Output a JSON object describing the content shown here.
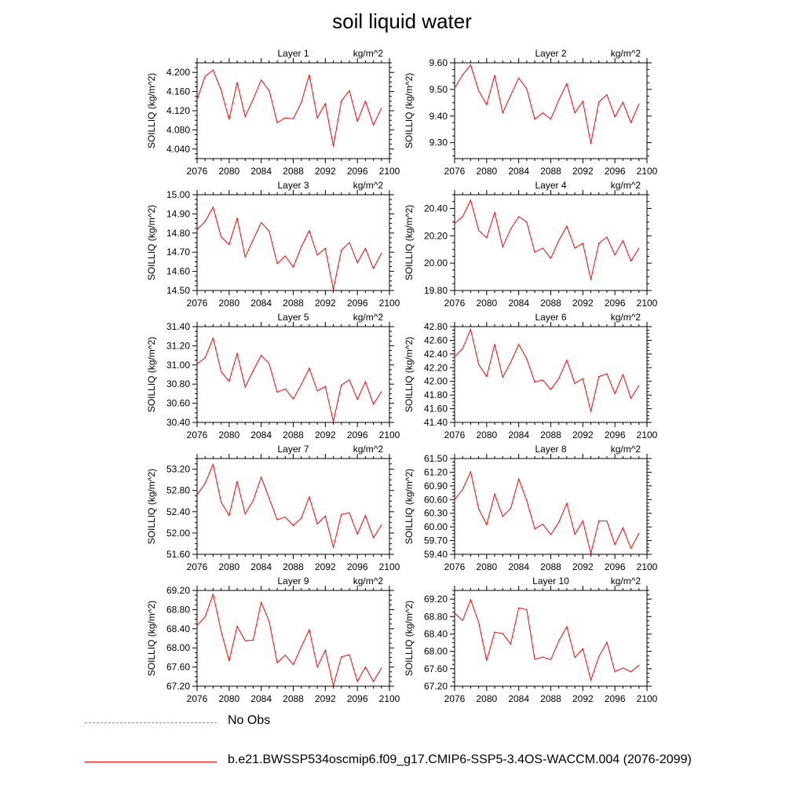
{
  "title": "soil liquid water",
  "legend": {
    "obs_label": "No Obs",
    "model_label": "b.e21.BWSSP534oscmip6.f09_g17.CMIP6-SSP5-3.4OS-WACCM.004 (2076-2099)"
  },
  "colors": {
    "model": "#ff0000",
    "obs": "#8a8aff"
  },
  "chart_data": [
    {
      "type": "line",
      "title": "Layer 1",
      "units": "kg/m^2",
      "ylabel": "SOILLIQ  (kg/m^2)",
      "xlim": [
        2076,
        2100
      ],
      "xticks": [
        2076,
        2080,
        2084,
        2088,
        2092,
        2096,
        2100
      ],
      "ylim": [
        4.02,
        4.22
      ],
      "yticks": [
        "4.040",
        "4.080",
        "4.120",
        "4.160",
        "4.200"
      ],
      "x": [
        2076,
        2077,
        2078,
        2079,
        2080,
        2081,
        2082,
        2083,
        2084,
        2085,
        2086,
        2087,
        2088,
        2089,
        2090,
        2091,
        2092,
        2093,
        2094,
        2095,
        2096,
        2097,
        2098,
        2099
      ],
      "values": [
        4.143,
        4.192,
        4.205,
        4.163,
        4.102,
        4.179,
        4.108,
        4.144,
        4.184,
        4.162,
        4.095,
        4.105,
        4.103,
        4.137,
        4.195,
        4.105,
        4.135,
        4.046,
        4.14,
        4.162,
        4.098,
        4.14,
        4.09,
        4.125
      ]
    },
    {
      "type": "line",
      "title": "Layer 2",
      "units": "kg/m^2",
      "ylabel": "SOILLIQ  (kg/m^2)",
      "xlim": [
        2076,
        2100
      ],
      "xticks": [
        2076,
        2080,
        2084,
        2088,
        2092,
        2096,
        2100
      ],
      "ylim": [
        9.24,
        9.6
      ],
      "yticks": [
        "9.30",
        "9.40",
        "9.50",
        "9.60"
      ],
      "x": [
        2076,
        2077,
        2078,
        2079,
        2080,
        2081,
        2082,
        2083,
        2084,
        2085,
        2086,
        2087,
        2088,
        2089,
        2090,
        2091,
        2092,
        2093,
        2094,
        2095,
        2096,
        2097,
        2098,
        2099
      ],
      "values": [
        9.505,
        9.555,
        9.592,
        9.495,
        9.443,
        9.553,
        9.412,
        9.478,
        9.543,
        9.502,
        9.388,
        9.412,
        9.388,
        9.46,
        9.522,
        9.412,
        9.455,
        9.297,
        9.453,
        9.48,
        9.397,
        9.452,
        9.375,
        9.445
      ]
    },
    {
      "type": "line",
      "title": "Layer 3",
      "units": "kg/m^2",
      "ylabel": "SOILLIQ  (kg/m^2)",
      "xlim": [
        2076,
        2100
      ],
      "xticks": [
        2076,
        2080,
        2084,
        2088,
        2092,
        2096,
        2100
      ],
      "ylim": [
        14.5,
        15.0
      ],
      "yticks": [
        "14.50",
        "14.60",
        "14.70",
        "14.80",
        "14.90",
        "15.00"
      ],
      "x": [
        2076,
        2077,
        2078,
        2079,
        2080,
        2081,
        2082,
        2083,
        2084,
        2085,
        2086,
        2087,
        2088,
        2089,
        2090,
        2091,
        2092,
        2093,
        2094,
        2095,
        2096,
        2097,
        2098,
        2099
      ],
      "values": [
        14.818,
        14.86,
        14.935,
        14.78,
        14.74,
        14.878,
        14.675,
        14.765,
        14.855,
        14.81,
        14.64,
        14.68,
        14.622,
        14.728,
        14.812,
        14.685,
        14.72,
        14.505,
        14.71,
        14.75,
        14.645,
        14.72,
        14.615,
        14.695
      ]
    },
    {
      "type": "line",
      "title": "Layer 4",
      "units": "kg/m^2",
      "ylabel": "SOILLIQ  (kg/m^2)",
      "xlim": [
        2076,
        2100
      ],
      "xticks": [
        2076,
        2080,
        2084,
        2088,
        2092,
        2096,
        2100
      ],
      "ylim": [
        19.8,
        20.5
      ],
      "yticks": [
        "19.80",
        "20.00",
        "20.20",
        "20.40"
      ],
      "x": [
        2076,
        2077,
        2078,
        2079,
        2080,
        2081,
        2082,
        2083,
        2084,
        2085,
        2086,
        2087,
        2088,
        2089,
        2090,
        2091,
        2092,
        2093,
        2094,
        2095,
        2096,
        2097,
        2098,
        2099
      ],
      "values": [
        20.29,
        20.34,
        20.46,
        20.24,
        20.185,
        20.37,
        20.12,
        20.25,
        20.34,
        20.3,
        20.08,
        20.11,
        20.035,
        20.165,
        20.27,
        20.11,
        20.145,
        19.88,
        20.145,
        20.19,
        20.06,
        20.165,
        20.015,
        20.11
      ]
    },
    {
      "type": "line",
      "title": "Layer 5",
      "units": "kg/m^2",
      "ylabel": "SOILLIQ  (kg/m^2)",
      "xlim": [
        2076,
        2100
      ],
      "xticks": [
        2076,
        2080,
        2084,
        2088,
        2092,
        2096,
        2100
      ],
      "ylim": [
        30.4,
        31.4
      ],
      "yticks": [
        "30.40",
        "30.60",
        "30.80",
        "31.00",
        "31.20",
        "31.40"
      ],
      "x": [
        2076,
        2077,
        2078,
        2079,
        2080,
        2081,
        2082,
        2083,
        2084,
        2085,
        2086,
        2087,
        2088,
        2089,
        2090,
        2091,
        2092,
        2093,
        2094,
        2095,
        2096,
        2097,
        2098,
        2099
      ],
      "values": [
        31.01,
        31.075,
        31.28,
        30.93,
        30.83,
        31.12,
        30.77,
        30.94,
        31.1,
        31.01,
        30.715,
        30.75,
        30.645,
        30.795,
        30.965,
        30.73,
        30.775,
        30.41,
        30.79,
        30.845,
        30.64,
        30.825,
        30.59,
        30.72
      ]
    },
    {
      "type": "line",
      "title": "Layer 6",
      "units": "kg/m^2",
      "ylabel": "SOILLIQ  (kg/m^2)",
      "xlim": [
        2076,
        2100
      ],
      "xticks": [
        2076,
        2080,
        2084,
        2088,
        2092,
        2096,
        2100
      ],
      "ylim": [
        41.4,
        42.8
      ],
      "yticks": [
        "41.40",
        "41.60",
        "41.80",
        "42.00",
        "42.20",
        "42.40",
        "42.60",
        "42.80"
      ],
      "x": [
        2076,
        2077,
        2078,
        2079,
        2080,
        2081,
        2082,
        2083,
        2084,
        2085,
        2086,
        2087,
        2088,
        2089,
        2090,
        2091,
        2092,
        2093,
        2094,
        2095,
        2096,
        2097,
        2098,
        2099
      ],
      "values": [
        42.36,
        42.48,
        42.76,
        42.25,
        42.07,
        42.54,
        42.06,
        42.28,
        42.54,
        42.33,
        41.99,
        42.02,
        41.88,
        42.04,
        42.31,
        41.97,
        42.04,
        41.56,
        42.07,
        42.11,
        41.82,
        42.1,
        41.75,
        41.94
      ]
    },
    {
      "type": "line",
      "title": "Layer 7",
      "units": "kg/m^2",
      "ylabel": "SOILLIQ  (kg/m^2)",
      "xlim": [
        2076,
        2100
      ],
      "xticks": [
        2076,
        2080,
        2084,
        2088,
        2092,
        2096,
        2100
      ],
      "ylim": [
        51.6,
        53.4
      ],
      "yticks": [
        "51.60",
        "52.00",
        "52.40",
        "52.80",
        "53.20"
      ],
      "x": [
        2076,
        2077,
        2078,
        2079,
        2080,
        2081,
        2082,
        2083,
        2084,
        2085,
        2086,
        2087,
        2088,
        2089,
        2090,
        2091,
        2092,
        2093,
        2094,
        2095,
        2096,
        2097,
        2098,
        2099
      ],
      "values": [
        52.72,
        52.93,
        53.29,
        52.58,
        52.33,
        52.97,
        52.36,
        52.61,
        53.05,
        52.65,
        52.25,
        52.3,
        52.14,
        52.28,
        52.68,
        52.17,
        52.32,
        51.73,
        52.35,
        52.38,
        51.98,
        52.33,
        51.91,
        52.15
      ]
    },
    {
      "type": "line",
      "title": "Layer 8",
      "units": "kg/m^2",
      "ylabel": "SOILLIQ  (kg/m^2)",
      "xlim": [
        2076,
        2100
      ],
      "xticks": [
        2076,
        2080,
        2084,
        2088,
        2092,
        2096,
        2100
      ],
      "ylim": [
        59.4,
        61.5
      ],
      "yticks": [
        "59.40",
        "59.70",
        "60.00",
        "60.30",
        "60.60",
        "60.90",
        "61.20",
        "61.50"
      ],
      "x": [
        2076,
        2077,
        2078,
        2079,
        2080,
        2081,
        2082,
        2083,
        2084,
        2085,
        2086,
        2087,
        2088,
        2089,
        2090,
        2091,
        2092,
        2093,
        2094,
        2095,
        2096,
        2097,
        2098,
        2099
      ],
      "values": [
        60.6,
        60.82,
        61.21,
        60.4,
        60.05,
        60.72,
        60.23,
        60.41,
        61.05,
        60.58,
        59.96,
        60.06,
        59.83,
        60.1,
        60.52,
        59.84,
        60.13,
        59.42,
        60.13,
        60.13,
        59.61,
        59.98,
        59.53,
        59.86
      ]
    },
    {
      "type": "line",
      "title": "Layer 9",
      "units": "kg/m^2",
      "ylabel": "SOILLIQ  (kg/m^2)",
      "xlim": [
        2076,
        2100
      ],
      "xticks": [
        2076,
        2080,
        2084,
        2088,
        2092,
        2096,
        2100
      ],
      "ylim": [
        67.2,
        69.2
      ],
      "yticks": [
        "67.20",
        "67.60",
        "68.00",
        "68.40",
        "68.80",
        "69.20"
      ],
      "x": [
        2076,
        2077,
        2078,
        2079,
        2080,
        2081,
        2082,
        2083,
        2084,
        2085,
        2086,
        2087,
        2088,
        2089,
        2090,
        2091,
        2092,
        2093,
        2094,
        2095,
        2096,
        2097,
        2098,
        2099
      ],
      "values": [
        68.47,
        68.65,
        69.12,
        68.35,
        67.73,
        68.45,
        68.15,
        68.16,
        68.95,
        68.55,
        67.69,
        67.85,
        67.65,
        68.02,
        68.38,
        67.6,
        67.95,
        67.21,
        67.81,
        67.86,
        67.3,
        67.6,
        67.3,
        67.58
      ]
    },
    {
      "type": "line",
      "title": "Layer 10",
      "units": "kg/m^2",
      "ylabel": "SOILLIQ  (kg/m^2)",
      "xlim": [
        2076,
        2100
      ],
      "xticks": [
        2076,
        2080,
        2084,
        2088,
        2092,
        2096,
        2100
      ],
      "ylim": [
        67.2,
        69.4
      ],
      "yticks": [
        "67.20",
        "67.60",
        "68.00",
        "68.40",
        "68.80",
        "69.20"
      ],
      "x": [
        2076,
        2077,
        2078,
        2079,
        2080,
        2081,
        2082,
        2083,
        2084,
        2085,
        2086,
        2087,
        2088,
        2089,
        2090,
        2091,
        2092,
        2093,
        2094,
        2095,
        2096,
        2097,
        2098,
        2099
      ],
      "values": [
        68.88,
        68.71,
        69.19,
        68.67,
        67.79,
        68.44,
        68.41,
        68.17,
        69.0,
        68.96,
        67.82,
        67.87,
        67.81,
        68.24,
        68.57,
        67.86,
        68.06,
        67.34,
        67.88,
        68.21,
        67.53,
        67.62,
        67.53,
        67.68
      ]
    }
  ]
}
